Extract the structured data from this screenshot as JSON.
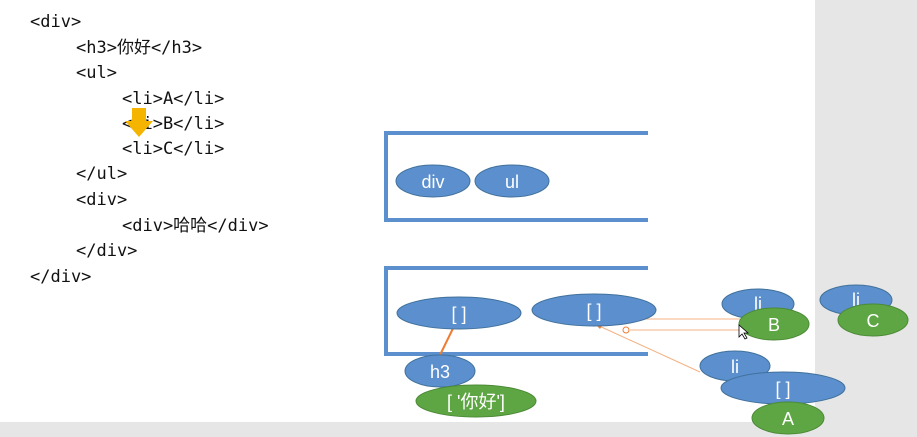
{
  "code_lines": [
    "<div>",
    "<h3>你好</h3>",
    "<ul>",
    "<li>A</li>",
    "<li>B</li>",
    "<li>C</li>",
    "</ul>",
    "<div>",
    "<div>哈哈</div>",
    "</div>",
    "</div>"
  ],
  "stack": {
    "div": "div",
    "ul": "ul"
  },
  "nodes": {
    "array_1": "[ ]",
    "array_2": "[ ]",
    "h3": "h3",
    "h3_children": "[ '你好']",
    "li_a": "li",
    "array_a": "[ ]",
    "text_a": "A",
    "li_b": "li",
    "text_b": "B",
    "li_c": "li",
    "text_c": "C"
  },
  "colors": {
    "frame": "#5b8fcd",
    "node_blue": "#5b8fcd",
    "node_green": "#5ea644",
    "pointer_arrow": "#f4b400",
    "link": "#ed7d31"
  }
}
